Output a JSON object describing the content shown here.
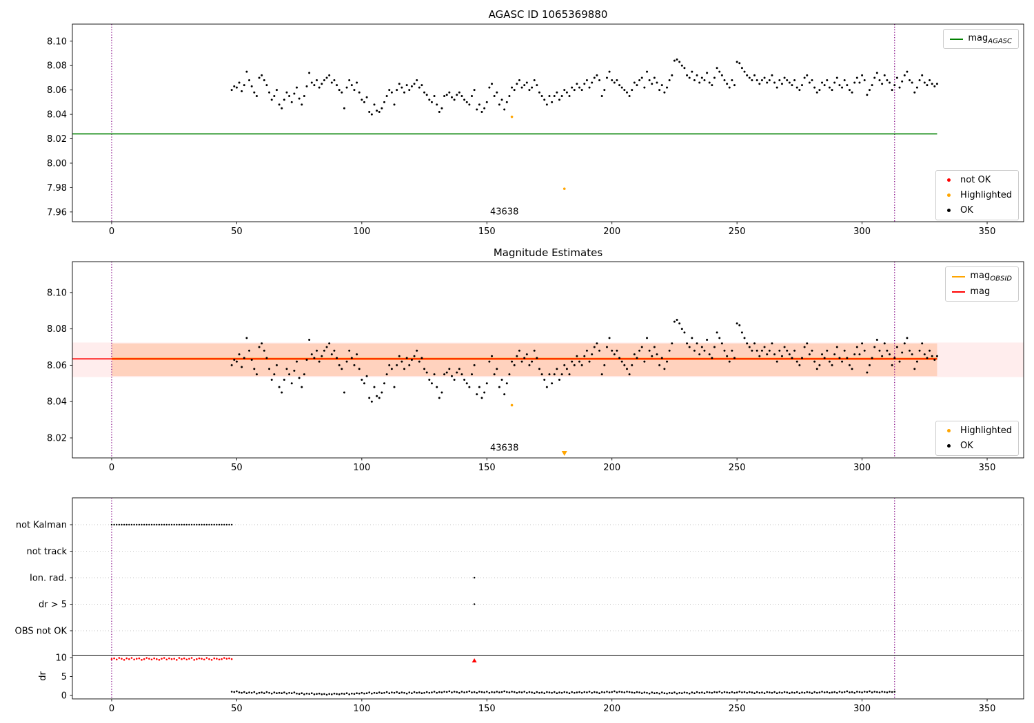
{
  "colors": {
    "ok": "#000000",
    "not_ok": "#ff0000",
    "highlighted": "#ffa500",
    "mag_agasc": "#008000",
    "mag": "#ff0000",
    "mag_obsid": "#ffa500",
    "vline": "#800080",
    "band_full": "rgba(255,0,0,0.07)",
    "band_obsid": "rgba(255,130,50,0.25)",
    "grid": "#b0b0b0",
    "flag_dot": "#000000",
    "dr_red": "#ff0000"
  },
  "mag_ok": {
    "x_start": 48,
    "x_step": 1,
    "y": [
      8.06,
      8.063,
      8.062,
      8.066,
      8.059,
      8.064,
      8.075,
      8.068,
      8.063,
      8.058,
      8.055,
      8.07,
      8.072,
      8.068,
      8.064,
      8.058,
      8.052,
      8.055,
      8.06,
      8.048,
      8.045,
      8.052,
      8.058,
      8.055,
      8.05,
      8.057,
      8.062,
      8.053,
      8.048,
      8.055,
      8.063,
      8.074,
      8.066,
      8.064,
      8.068,
      8.062,
      8.065,
      8.068,
      8.07,
      8.072,
      8.066,
      8.068,
      8.064,
      8.06,
      8.058,
      8.045,
      8.062,
      8.068,
      8.064,
      8.06,
      8.066,
      8.058,
      8.052,
      8.05,
      8.054,
      8.042,
      8.04,
      8.048,
      8.043,
      8.042,
      8.045,
      8.05,
      8.055,
      8.06,
      8.058,
      8.048,
      8.06,
      8.065,
      8.062,
      8.058,
      8.064,
      8.06,
      8.063,
      8.065,
      8.068,
      8.062,
      8.064,
      8.058,
      8.056,
      8.052,
      8.05,
      8.055,
      8.048,
      8.042,
      8.045,
      8.055,
      8.056,
      8.058,
      8.054,
      8.052,
      8.056,
      8.058,
      8.055,
      8.052,
      8.05,
      8.048,
      8.055,
      8.06,
      8.044,
      8.048,
      8.042,
      8.045,
      8.05,
      8.062,
      8.065,
      8.055,
      8.058,
      8.048,
      8.052,
      8.044,
      8.05,
      8.055,
      8.062,
      8.06,
      8.065,
      8.068,
      8.062,
      8.064,
      8.066,
      8.06,
      8.062,
      8.068,
      8.064,
      8.058,
      8.055,
      8.052,
      8.048,
      8.055,
      8.05,
      8.055,
      8.058,
      8.052,
      8.055,
      8.06,
      8.058,
      8.055,
      8.062,
      8.06,
      8.065,
      8.062,
      8.06,
      8.065,
      8.068,
      8.062,
      8.066,
      8.07,
      8.072,
      8.068,
      8.055,
      8.06,
      8.07,
      8.075,
      8.068,
      8.066,
      8.068,
      8.064,
      8.062,
      8.06,
      8.058,
      8.055,
      8.06,
      8.066,
      8.064,
      8.068,
      8.07,
      8.062,
      8.075,
      8.068,
      8.065,
      8.07,
      8.066,
      8.06,
      8.064,
      8.058,
      8.062,
      8.068,
      8.072,
      8.084,
      8.085,
      8.083,
      8.08,
      8.078,
      8.072,
      8.07,
      8.075,
      8.068,
      8.072,
      8.066,
      8.07,
      8.068,
      8.074,
      8.066,
      8.064,
      8.07,
      8.078,
      8.075,
      8.072,
      8.068,
      8.065,
      8.062,
      8.068,
      8.064,
      8.083,
      8.082,
      8.078,
      8.075,
      8.072,
      8.07,
      8.068,
      8.072,
      8.068,
      8.065,
      8.068,
      8.07,
      8.066,
      8.068,
      8.072,
      8.066,
      8.062,
      8.068,
      8.065,
      8.07,
      8.068,
      8.066,
      8.064,
      8.068,
      8.062,
      8.06,
      8.064,
      8.07,
      8.072,
      8.066,
      8.068,
      8.062,
      8.058,
      8.06,
      8.066,
      8.064,
      8.068,
      8.062,
      8.06,
      8.066,
      8.07,
      8.064,
      8.062,
      8.068,
      8.064,
      8.06,
      8.058,
      8.066,
      8.07,
      8.066,
      8.072,
      8.068,
      8.056,
      8.06,
      8.064,
      8.07,
      8.074,
      8.068,
      8.065,
      8.072,
      8.068,
      8.066,
      8.06,
      8.064,
      8.07,
      8.062,
      8.067,
      8.072,
      8.075,
      8.068,
      8.066,
      8.058,
      8.062,
      8.068,
      8.072,
      8.066,
      8.064,
      8.068,
      8.065,
      8.063,
      8.065
    ]
  },
  "chart_data": [
    {
      "type": "scatter",
      "title": "AGASC ID 1065369880",
      "xlim": [
        -15.7,
        364.6
      ],
      "ylim": [
        7.952,
        8.114
      ],
      "xticks": [
        0,
        50,
        100,
        150,
        200,
        250,
        300,
        350
      ],
      "yticks": [
        7.96,
        7.98,
        8.0,
        8.02,
        8.04,
        8.06,
        8.08,
        8.1
      ],
      "ytick_labels": [
        "7.96",
        "7.98",
        "8.00",
        "8.02",
        "8.04",
        "8.06",
        "8.08",
        "8.10"
      ],
      "vlines": [
        0,
        313
      ],
      "agasc_mag_line": {
        "y": 8.024,
        "x_end": 330
      },
      "ok_series_ref": "mag_ok",
      "highlighted": [
        [
          160,
          8.038
        ],
        [
          181,
          7.979
        ]
      ],
      "not_ok": [],
      "annotation": {
        "text": "43638",
        "x": 157,
        "y": 7.958
      },
      "legend_top": [
        {
          "color": "#008000",
          "label_main": "mag",
          "label_sub": "AGASC"
        }
      ],
      "legend_bottom": [
        {
          "color": "#ff0000",
          "label": "not OK"
        },
        {
          "color": "#ffa500",
          "label": "Highlighted"
        },
        {
          "color": "#000000",
          "label": "OK"
        }
      ]
    },
    {
      "type": "scatter",
      "title": "Magnitude Estimates",
      "xlim": [
        -15.7,
        364.6
      ],
      "ylim": [
        8.009,
        8.117
      ],
      "xticks": [
        0,
        50,
        100,
        150,
        200,
        250,
        300,
        350
      ],
      "yticks": [
        8.02,
        8.04,
        8.06,
        8.08,
        8.1
      ],
      "ytick_labels": [
        "8.02",
        "8.04",
        "8.06",
        "8.08",
        "8.10"
      ],
      "vlines": [
        0,
        313
      ],
      "band_full": {
        "y0": 8.0535,
        "y1": 8.0725
      },
      "obsid": {
        "x0": 0,
        "x1": 330,
        "y": 8.0635,
        "band_y0": 8.054,
        "band_y1": 8.072
      },
      "mag_line": {
        "y": 8.0635,
        "x_end": 330
      },
      "ok_series_ref": "mag_ok",
      "highlighted": [
        [
          160,
          8.038
        ]
      ],
      "clipped_below": [
        {
          "x": 181
        }
      ],
      "annotation": {
        "text": "43638",
        "x": 157,
        "y": 8.013
      },
      "legend_top": [
        {
          "color": "#ffa500",
          "label_main": "mag",
          "label_sub": "OBSID"
        },
        {
          "color": "#ff0000",
          "label_main": "mag",
          "label_sub": ""
        }
      ],
      "legend_bottom": [
        {
          "color": "#ffa500",
          "label": "Highlighted"
        },
        {
          "color": "#000000",
          "label": "OK"
        }
      ]
    },
    {
      "type": "flags",
      "xlim": [
        -15.7,
        364.6
      ],
      "xticks": [
        0,
        50,
        100,
        150,
        200,
        250,
        300,
        350
      ],
      "vlines": [
        0,
        313
      ],
      "flags": [
        {
          "label": "not Kalman",
          "range": {
            "x_start": 0,
            "x_end": 48,
            "step": 1
          }
        },
        {
          "label": "not track"
        },
        {
          "label": "Ion. rad.",
          "xs": [
            145
          ]
        },
        {
          "label": "dr > 5",
          "xs": [
            145
          ]
        },
        {
          "label": "OBS not OK"
        }
      ],
      "dr_axis": {
        "ylabel": "dr",
        "yticks": [
          0,
          5,
          10
        ],
        "red": {
          "x_start": 0,
          "x_step": 1,
          "values": [
            9.6,
            9.8,
            9.5,
            9.9,
            9.7,
            9.4,
            9.8,
            9.6,
            9.9,
            9.5,
            9.7,
            9.8,
            9.4,
            9.6,
            9.9,
            9.7,
            9.5,
            9.8,
            9.6,
            9.4,
            9.7,
            9.9,
            9.5,
            9.8,
            9.6,
            9.7,
            9.4,
            9.9,
            9.6,
            9.8,
            9.5,
            9.7,
            9.9,
            9.4,
            9.6,
            9.8,
            9.7,
            9.5,
            9.9,
            9.6,
            9.4,
            9.8,
            9.7,
            9.5,
            9.6,
            9.9,
            9.7,
            9.8,
            9.6
          ]
        },
        "red_clipped": [
          145
        ],
        "ok": {
          "x_start": 48,
          "x_step": 1,
          "values": [
            1.0,
            0.9,
            1.1,
            0.8,
            0.7,
            0.9,
            0.6,
            0.8,
            0.7,
            0.9,
            0.5,
            0.7,
            0.8,
            0.6,
            0.9,
            0.7,
            0.5,
            0.8,
            0.6,
            0.7,
            0.6,
            0.8,
            0.5,
            0.7,
            0.6,
            0.8,
            0.5,
            0.4,
            0.6,
            0.3,
            0.5,
            0.4,
            0.6,
            0.3,
            0.4,
            0.5,
            0.3,
            0.4,
            0.2,
            0.4,
            0.3,
            0.5,
            0.4,
            0.3,
            0.5,
            0.4,
            0.6,
            0.3,
            0.5,
            0.4,
            0.6,
            0.5,
            0.7,
            0.5,
            0.6,
            0.8,
            0.5,
            0.7,
            0.6,
            0.8,
            0.6,
            0.7,
            0.9,
            0.6,
            0.8,
            0.7,
            0.9,
            0.6,
            0.8,
            0.7,
            0.5,
            0.8,
            0.6,
            0.9,
            0.7,
            0.8,
            0.6,
            0.7,
            0.9,
            0.7,
            0.8,
            1.0,
            0.7,
            0.9,
            0.8,
            1.0,
            0.9,
            1.1,
            0.8,
            1.0,
            0.9,
            0.7,
            1.0,
            0.8,
            0.9,
            1.1,
            0.8,
            0.9,
            0.7,
            1.0,
            0.9,
            0.8,
            1.0,
            0.7,
            0.9,
            0.8,
            1.0,
            0.8,
            0.9,
            1.1,
            0.9,
            0.8,
            1.0,
            0.9,
            0.7,
            0.9,
            0.8,
            1.0,
            0.7,
            0.9,
            0.8,
            0.6,
            0.9,
            0.7,
            0.8,
            0.6,
            0.9,
            0.8,
            0.7,
            0.9,
            0.6,
            0.8,
            0.7,
            0.9,
            0.8,
            0.6,
            0.9,
            0.7,
            0.8,
            0.9,
            0.7,
            0.9,
            0.8,
            1.0,
            0.7,
            0.9,
            0.8,
            0.6,
            0.9,
            0.8,
            1.0,
            0.8,
            0.9,
            1.1,
            0.8,
            1.0,
            0.9,
            0.8,
            1.0,
            0.9,
            0.8,
            0.7,
            0.9,
            0.8,
            0.6,
            0.8,
            0.7,
            0.5,
            0.8,
            0.6,
            0.7,
            0.5,
            0.8,
            0.6,
            0.5,
            0.7,
            0.6,
            0.8,
            0.5,
            0.7,
            0.6,
            0.8,
            0.7,
            0.5,
            0.8,
            0.6,
            0.9,
            0.7,
            0.8,
            0.6,
            0.9,
            0.8,
            0.7,
            0.9,
            0.8,
            1.0,
            0.7,
            0.9,
            0.8,
            0.7,
            0.9,
            0.7,
            0.8,
            1.0,
            0.8,
            0.9,
            0.7,
            0.9,
            0.8,
            0.6,
            0.9,
            0.7,
            0.8,
            0.6,
            0.9,
            0.8,
            0.7,
            0.9,
            0.6,
            0.8,
            0.7,
            0.9,
            0.8,
            0.6,
            0.8,
            0.7,
            0.9,
            0.6,
            0.8,
            0.7,
            0.9,
            0.8,
            0.6,
            0.9,
            0.7,
            0.8,
            1.0,
            0.8,
            0.9,
            0.7,
            0.8,
            0.9,
            0.7,
            1.0,
            0.8,
            0.9,
            1.1,
            0.8,
            0.9,
            0.7,
            1.0,
            0.9,
            0.8,
            1.0,
            0.9,
            1.1,
            0.8,
            1.0,
            0.9,
            0.8,
            1.0,
            0.9,
            0.8,
            1.0,
            0.9,
            1.0
          ]
        }
      }
    }
  ]
}
